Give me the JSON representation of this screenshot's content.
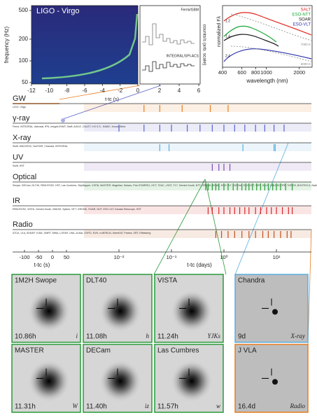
{
  "spectrogram": {
    "title": "LIGO - Virgo",
    "ylabel": "frequency (Hz)",
    "yticks": [
      500,
      200,
      100,
      50
    ],
    "xticks": [
      -12,
      -10,
      -8,
      -6,
      -4,
      -2,
      0
    ],
    "xlabel": "t-tc (s)"
  },
  "gamma_panel": {
    "labels": [
      "Fermi/GBM",
      "INTEGRAL/SPI-ACS"
    ],
    "ylabel": "counts/s (arb. scale)",
    "xticks": [
      2,
      4,
      6
    ]
  },
  "spectra": {
    "series": [
      {
        "name": "SALT",
        "color": "#e0241b"
      },
      {
        "name": "ESO-NTT",
        "color": "#1aa637"
      },
      {
        "name": "SOAR",
        "color": "#111111"
      },
      {
        "name": "ESO-VLT",
        "color": "#2b2fa8"
      }
    ],
    "ylabel": "normalized Fλ",
    "xlabel": "wavelength (nm)",
    "xticks": [
      400,
      600,
      800,
      1000,
      2000
    ],
    "epochs": [
      "1.2",
      "1.4",
      "2.4"
    ],
    "temps": [
      "7000 K",
      "5000 K"
    ]
  },
  "timeline": {
    "rows": [
      {
        "name": "GW",
        "facilities": "LIGO, Virgo",
        "color": "#e87d1e",
        "observations": [
          0.03,
          0.06,
          0.16,
          0.55,
          1.2
        ]
      },
      {
        "name": "γ-ray",
        "facilities": "Fermi, INTEGRAL, Astrosat, IPN, Insight-HXMT, Swift, AGILE, CALET, H.E.S.S., HAWC, Konus-Wind",
        "color": "#5a63c8",
        "observations": [
          0.01,
          0.03,
          0.06,
          0.1,
          0.2,
          0.35,
          0.6,
          1,
          1.6,
          2.5,
          4,
          6,
          9,
          14
        ]
      },
      {
        "name": "X-ray",
        "facilities": "Swift, MAXI/GSC, NuSTAR, Chandra, INTEGRAL",
        "color": "#5aaee0",
        "observations": [
          0.06,
          0.09,
          2.3,
          9,
          9.5
        ]
      },
      {
        "name": "UV",
        "facilities": "Swift, HST",
        "color": "#7b4fb0",
        "observations": [
          0.6,
          0.8,
          1,
          1.3
        ]
      },
      {
        "name": "Optical",
        "facilities": "Swope, DECam, DLT40, REM-ROS2, HST, Las Cumbres, SkyMapper, VISTA, MASTER, Magellan, Subaru, Pan-STARRS1, HCT, TZAC, LSGT, T17, Gemini-South, NTT, GROND, SOAR, ESO-VLT, KMTNet, ESO-VST, VIRT, SALT, CHILESCOPE, TOROS, BOOTES-5, Zadko, iTelescope.Net, AAT, Pi of the Sky, AST3-2, ATLAS, Danish Tel, DFN, T80S, EABA",
        "color": "#2a9a3a",
        "observations": [
          0.45,
          0.5,
          0.6,
          0.7,
          0.8,
          1,
          1.2,
          1.5,
          1.8,
          2.2,
          2.6,
          3,
          3.5,
          4.2,
          5,
          6,
          7,
          8.5,
          10,
          12,
          15,
          20
        ]
      },
      {
        "name": "IR",
        "facilities": "REM-ROS2, VISTA, Gemini-South, 2MASS, Spitzer, NTT, GROND, SOAR, NOT, ESO-VLT, Kanata Telescope, HST",
        "color": "#d62728",
        "observations": [
          0.5,
          0.6,
          0.8,
          1,
          1.3,
          1.6,
          2,
          2.5,
          3,
          4,
          5,
          6.5,
          8,
          10,
          13,
          17,
          20
        ]
      },
      {
        "name": "Radio",
        "facilities": "ATCA, VLA, ASKAP, VLBA, GMRT, MWA, LOFAR, LWA, ALMA, OVRO, EVN, e-MERLIN, MeerKAT, Parkes, SRT, Effelsberg",
        "color": "#c0501a",
        "observations": [
          0.7,
          0.9,
          1.2,
          1.6,
          2.2,
          3,
          4,
          5.5,
          7,
          9,
          12,
          16,
          19
        ]
      }
    ],
    "linear_ticks": [
      -100,
      -50,
      0,
      50
    ],
    "log_ticks": [
      {
        "value": 0.01,
        "label": "10⁻²"
      },
      {
        "value": 0.1,
        "label": "10⁻¹"
      },
      {
        "value": 1,
        "label": "10⁰"
      },
      {
        "value": 10,
        "label": "10¹"
      }
    ],
    "xlabel_s": "t-tc (s)",
    "xlabel_days": "t-tc (days)"
  },
  "cutouts": [
    {
      "telescope": "1M2H Swope",
      "time": "10.86h",
      "filter": "i"
    },
    {
      "telescope": "DLT40",
      "time": "11.08h",
      "filter": "h"
    },
    {
      "telescope": "VISTA",
      "time": "11.24h",
      "filter": "YJKs"
    },
    {
      "telescope": "MASTER",
      "time": "11.31h",
      "filter": "W"
    },
    {
      "telescope": "DECam",
      "time": "11.40h",
      "filter": "iz"
    },
    {
      "telescope": "Las Cumbres",
      "time": "11.57h",
      "filter": "w"
    },
    {
      "telescope": "Chandra",
      "time": "9d",
      "filter": "X-ray"
    },
    {
      "telescope": "J VLA",
      "time": "16.4d",
      "filter": "Radio"
    }
  ]
}
